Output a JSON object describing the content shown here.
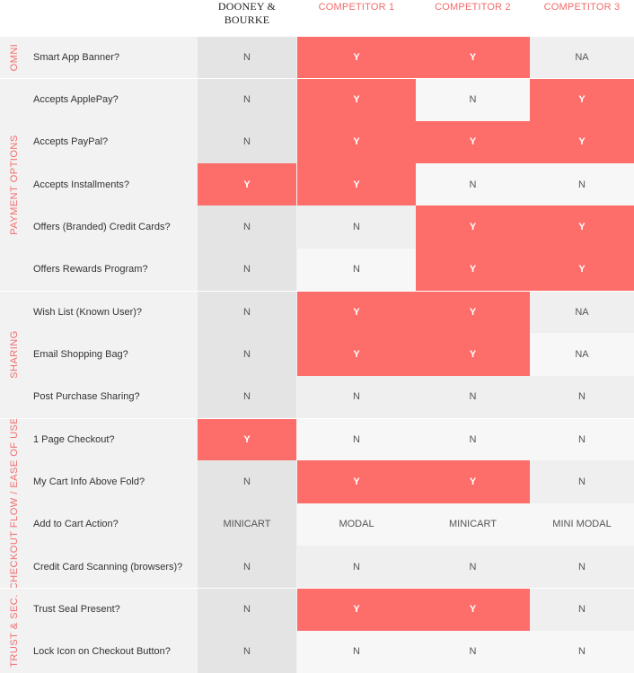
{
  "headers": {
    "brand": "DOONEY & BOURKE",
    "comp1": "COMPETITOR 1",
    "comp2": "COMPETITOR 2",
    "comp3": "COMPETITOR 3"
  },
  "colors": {
    "accent": "#f26c6b",
    "highlight": "#fd6e6b"
  },
  "sections": [
    {
      "label": "OMNI",
      "rows": [
        {
          "q": "Smart App Banner?",
          "v": [
            "N",
            "Y",
            "Y",
            "NA"
          ]
        }
      ]
    },
    {
      "label": "PAYMENT OPTIONS",
      "rows": [
        {
          "q": "Accepts ApplePay?",
          "v": [
            "N",
            "Y",
            "N",
            "Y"
          ]
        },
        {
          "q": "Accepts PayPal?",
          "v": [
            "N",
            "Y",
            "Y",
            "Y"
          ]
        },
        {
          "q": "Accepts Installments?",
          "v": [
            "Y",
            "Y",
            "N",
            "N"
          ]
        },
        {
          "q": "Offers (Branded) Credit Cards?",
          "v": [
            "N",
            "N",
            "Y",
            "Y"
          ]
        },
        {
          "q": "Offers Rewards Program?",
          "v": [
            "N",
            "N",
            "Y",
            "Y"
          ]
        }
      ]
    },
    {
      "label": "SHARING",
      "rows": [
        {
          "q": "Wish List (Known User)?",
          "v": [
            "N",
            "Y",
            "Y",
            "NA"
          ]
        },
        {
          "q": "Email Shopping Bag?",
          "v": [
            "N",
            "Y",
            "Y",
            "NA"
          ]
        },
        {
          "q": "Post Purchase Sharing?",
          "v": [
            "N",
            "N",
            "N",
            "N"
          ]
        }
      ]
    },
    {
      "label": "CHECKOUT FLOW / EASE OF USE",
      "rows": [
        {
          "q": "1 Page Checkout?",
          "v": [
            "Y",
            "N",
            "N",
            "N"
          ]
        },
        {
          "q": "My Cart Info Above Fold?",
          "v": [
            "N",
            "Y",
            "Y",
            "N"
          ]
        },
        {
          "q": "Add to Cart Action?",
          "v": [
            "MINICART",
            "MODAL",
            "MINICART",
            "MINI MODAL"
          ]
        },
        {
          "q": "Credit Card Scanning (browsers)?",
          "v": [
            "N",
            "N",
            "N",
            "N"
          ]
        }
      ]
    },
    {
      "label": "TRUST & SEC.",
      "rows": [
        {
          "q": "Trust Seal Present?",
          "v": [
            "N",
            "Y",
            "Y",
            "N"
          ]
        },
        {
          "q": "Lock Icon on Checkout Button?",
          "v": [
            "N",
            "N",
            "N",
            "N"
          ]
        }
      ]
    }
  ]
}
